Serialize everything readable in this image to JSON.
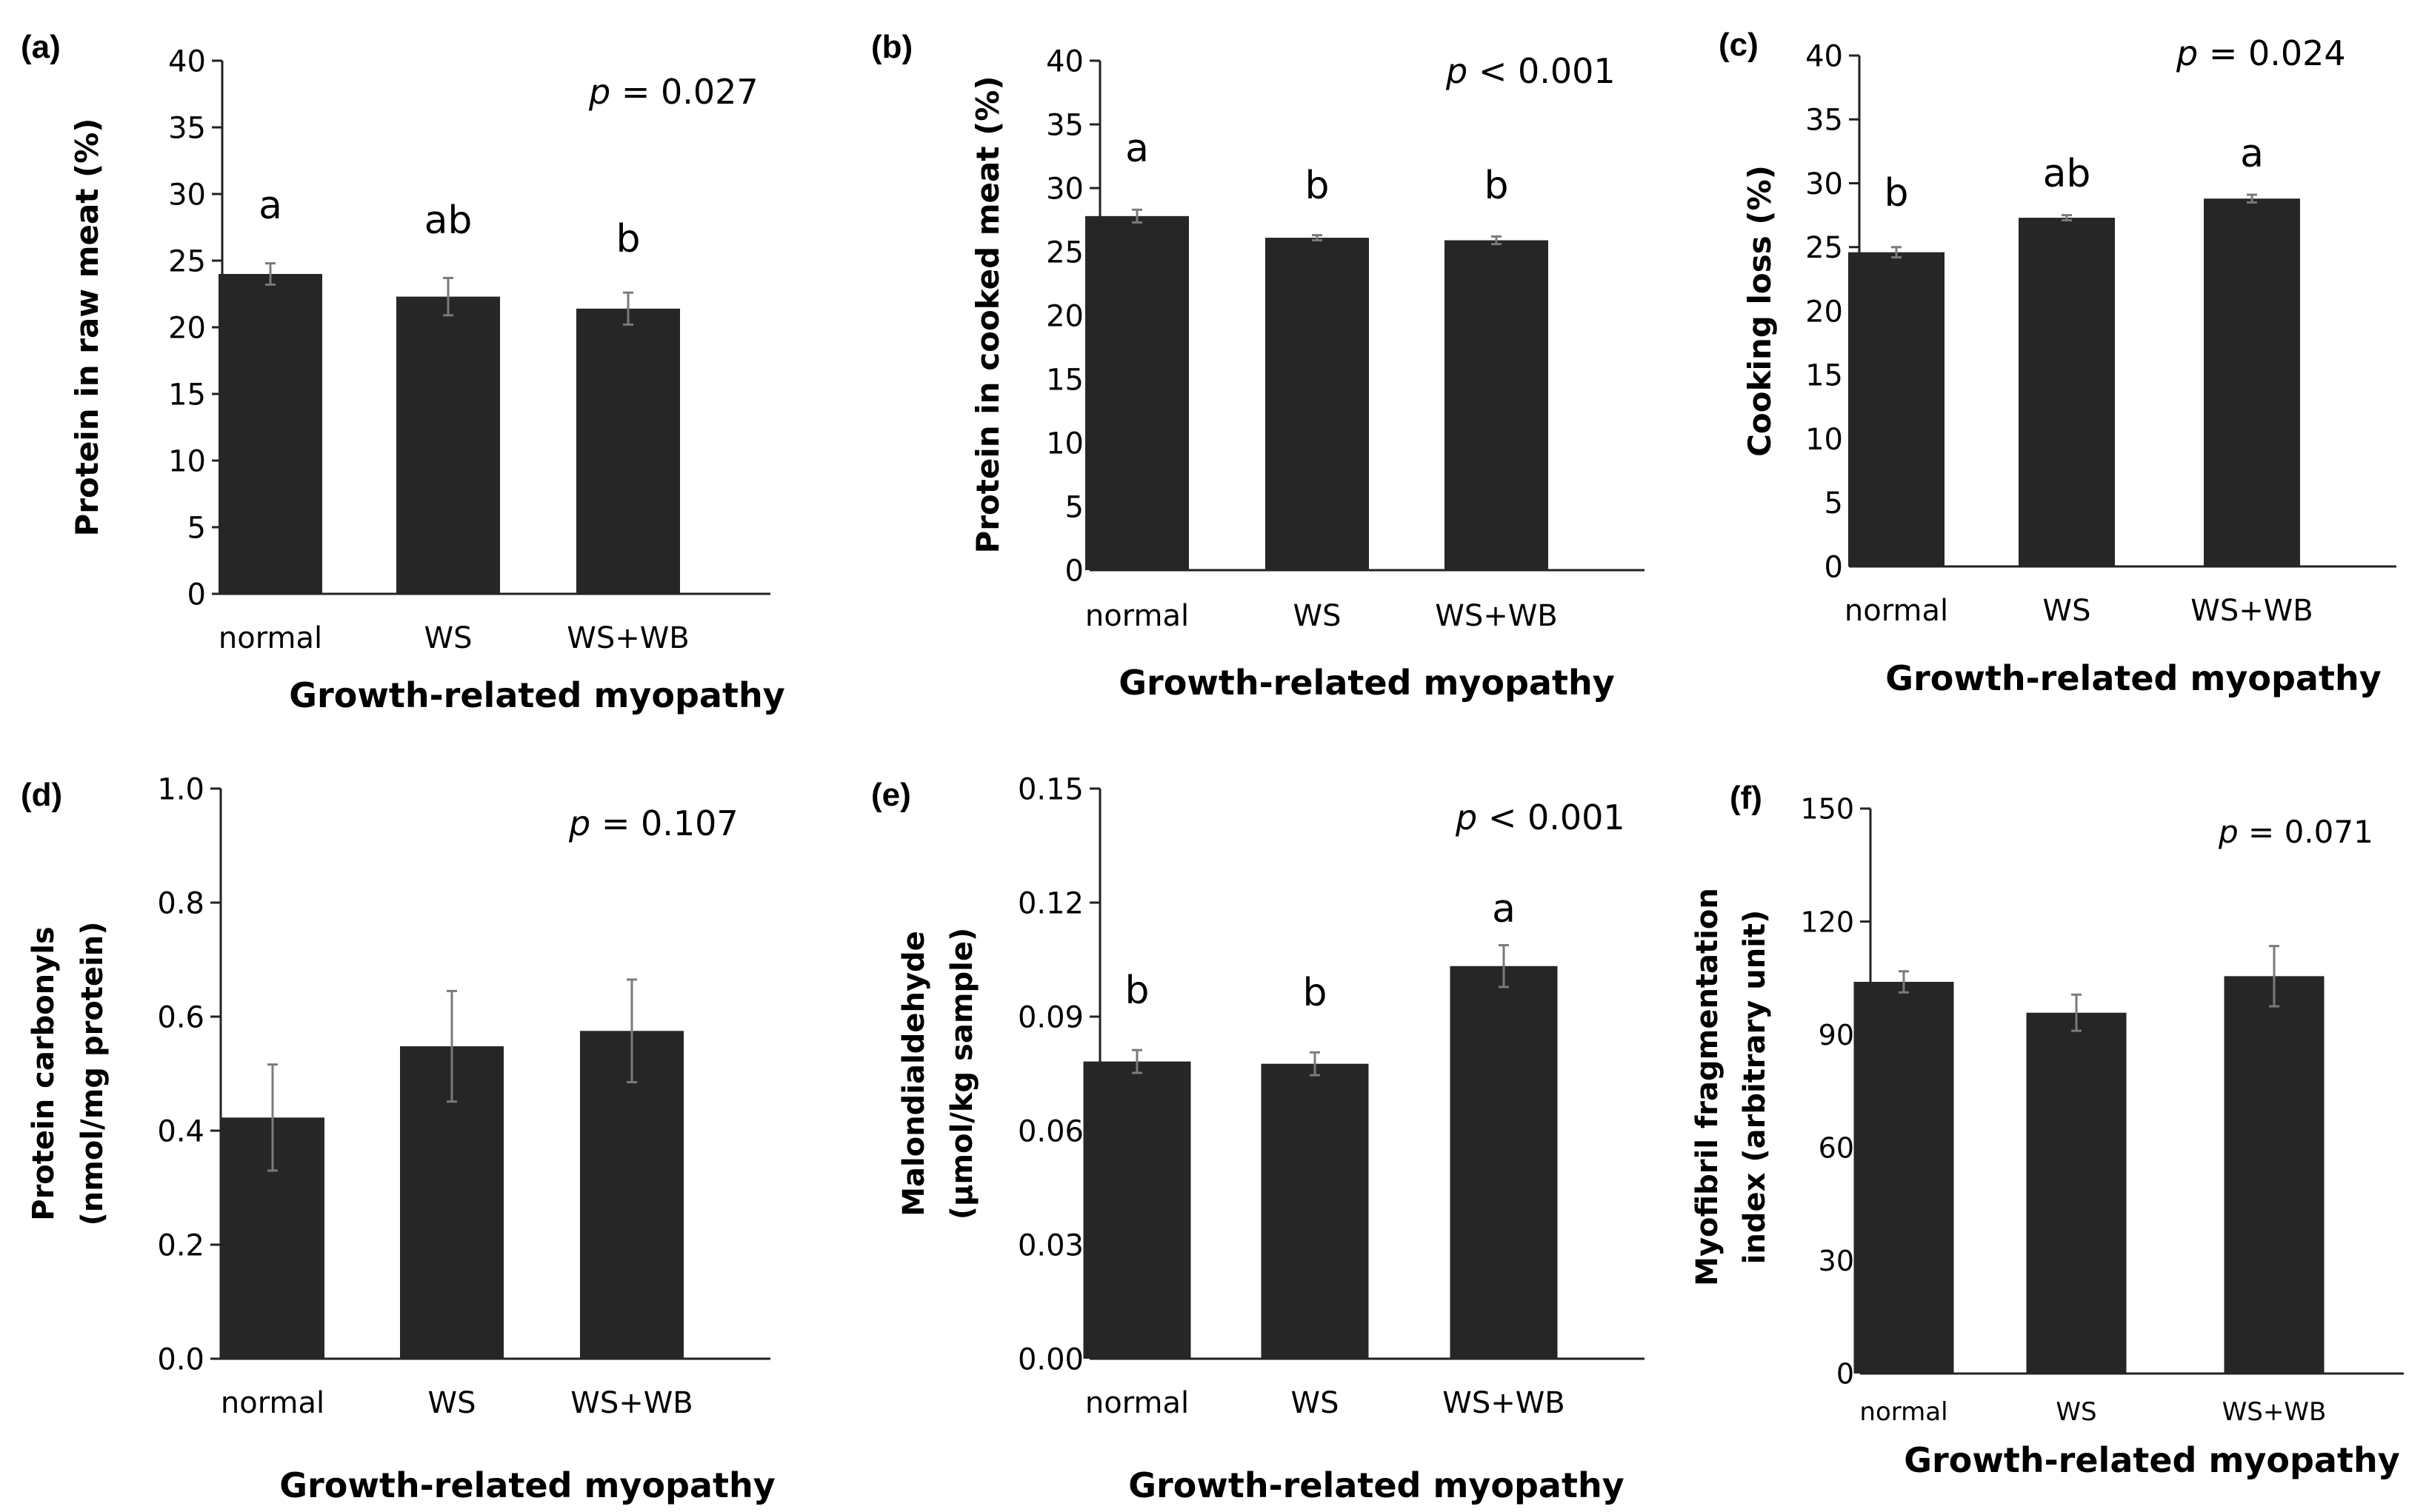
{
  "figure": {
    "x_axis_title": "Growth-related myopathy",
    "categories": [
      "normal",
      "WS",
      "WS+WB"
    ]
  },
  "chart_data": [
    {
      "type": "bar",
      "panel": "(a)",
      "ylabel": "Protein in raw meat (%)",
      "xlabel": "Growth-related myopathy",
      "categories": [
        "normal",
        "WS",
        "WS+WB"
      ],
      "values": [
        24.0,
        22.3,
        21.4
      ],
      "errors": [
        0.8,
        1.4,
        1.2
      ],
      "letters": [
        "a",
        "ab",
        "b"
      ],
      "p_symbol": "p",
      "p_text": " = 0.027",
      "ylim": [
        0,
        40
      ],
      "yticks": [
        "0",
        "5",
        "10",
        "15",
        "20",
        "25",
        "30",
        "35",
        "40"
      ],
      "color": "#262626"
    },
    {
      "type": "bar",
      "panel": "(b)",
      "ylabel": "Protein in cooked meat (%)",
      "xlabel": "Growth-related myopathy",
      "categories": [
        "normal",
        "WS",
        "WS+WB"
      ],
      "values": [
        27.8,
        26.1,
        25.9
      ],
      "errors": [
        0.5,
        0.2,
        0.3
      ],
      "letters": [
        "a",
        "b",
        "b"
      ],
      "p_symbol": "p",
      "p_text": " < 0.001",
      "ylim": [
        0,
        40
      ],
      "yticks": [
        "0",
        "5",
        "10",
        "15",
        "20",
        "25",
        "30",
        "35",
        "40"
      ],
      "color": "#262626"
    },
    {
      "type": "bar",
      "panel": "(c)",
      "ylabel": "Cooking loss (%)",
      "xlabel": "Growth-related myopathy",
      "categories": [
        "normal",
        "WS",
        "WS+WB"
      ],
      "values": [
        24.6,
        27.3,
        28.8
      ],
      "errors": [
        0.4,
        0.2,
        0.3
      ],
      "letters": [
        "b",
        "ab",
        "a"
      ],
      "p_symbol": "p",
      "p_text": " = 0.024",
      "ylim": [
        0,
        40
      ],
      "yticks": [
        "0",
        "5",
        "10",
        "15",
        "20",
        "25",
        "30",
        "35",
        "40"
      ],
      "color": "#262626"
    },
    {
      "type": "bar",
      "panel": "(d)",
      "ylabel": "Protein carbonyls",
      "ylabel2": "(nmol/mg protein)",
      "xlabel": "Growth-related myopathy",
      "categories": [
        "normal",
        "WS",
        "WS+WB"
      ],
      "values": [
        0.423,
        0.548,
        0.575
      ],
      "errors": [
        0.093,
        0.097,
        0.09
      ],
      "letters": [
        "",
        "",
        ""
      ],
      "p_symbol": "p",
      "p_text": " = 0.107",
      "ylim": [
        0,
        1.0
      ],
      "yticks": [
        "0.0",
        "0.2",
        "0.4",
        "0.6",
        "0.8",
        "1.0"
      ],
      "color": "#262626"
    },
    {
      "type": "bar",
      "panel": "(e)",
      "ylabel": "Malondialdehyde",
      "ylabel2": "(µmol/kg sample)",
      "xlabel": "Growth-related myopathy",
      "categories": [
        "normal",
        "WS",
        "WS+WB"
      ],
      "values": [
        0.0782,
        0.0776,
        0.1033
      ],
      "errors": [
        0.003,
        0.003,
        0.0055
      ],
      "letters": [
        "b",
        "b",
        "a"
      ],
      "p_symbol": "p",
      "p_text": " < 0.001",
      "ylim": [
        0,
        0.15
      ],
      "yticks": [
        "0.00",
        "0.03",
        "0.06",
        "0.09",
        "0.12",
        "0.15"
      ],
      "color": "#262626"
    },
    {
      "type": "bar",
      "panel": "(f)",
      "ylabel": "Myofibril fragmentation",
      "ylabel2": "index (arbitrary unit)",
      "xlabel": "Growth-related myopathy",
      "categories": [
        "normal",
        "WS",
        "WS+WB"
      ],
      "values": [
        104.0,
        95.8,
        105.5
      ],
      "errors": [
        2.8,
        4.8,
        8.0
      ],
      "letters": [
        "",
        "",
        ""
      ],
      "p_symbol": "p",
      "p_text": " = 0.071",
      "ylim": [
        0,
        150
      ],
      "yticks": [
        "0",
        "30",
        "60",
        "90",
        "120",
        "150"
      ],
      "color": "#262626"
    }
  ]
}
